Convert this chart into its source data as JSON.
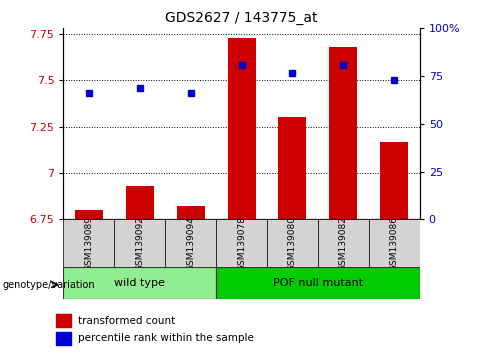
{
  "title": "GDS2627 / 143775_at",
  "samples": [
    "GSM139089",
    "GSM139092",
    "GSM139094",
    "GSM139078",
    "GSM139080",
    "GSM139082",
    "GSM139086"
  ],
  "bar_values": [
    6.8,
    6.93,
    6.82,
    7.73,
    7.3,
    7.68,
    7.17
  ],
  "bar_bottom": 6.75,
  "scatter_values": [
    7.43,
    7.46,
    7.43,
    7.58,
    7.54,
    7.58,
    7.5
  ],
  "ylim_left": [
    6.75,
    7.78
  ],
  "yticks_left": [
    6.75,
    7.0,
    7.25,
    7.5,
    7.75
  ],
  "ytick_labels_left": [
    "6.75",
    "7",
    "7.25",
    "7.5",
    "7.75"
  ],
  "ylim_right": [
    0,
    100
  ],
  "yticks_right": [
    0,
    25,
    50,
    75,
    100
  ],
  "ytick_labels_right": [
    "0",
    "25",
    "50",
    "75",
    "100%"
  ],
  "bar_color": "#cc0000",
  "scatter_color": "#0000cc",
  "groups": [
    {
      "label": "wild type",
      "indices": [
        0,
        1,
        2
      ],
      "color": "#90ee90"
    },
    {
      "label": "POF null mutant",
      "indices": [
        3,
        4,
        5,
        6
      ],
      "color": "#00cc00"
    }
  ],
  "genotype_label": "genotype/variation",
  "legend_bar_label": "transformed count",
  "legend_scatter_label": "percentile rank within the sample",
  "tick_label_color_left": "#cc0000",
  "tick_label_color_right": "#0000cc",
  "sample_bg": "#d3d3d3"
}
